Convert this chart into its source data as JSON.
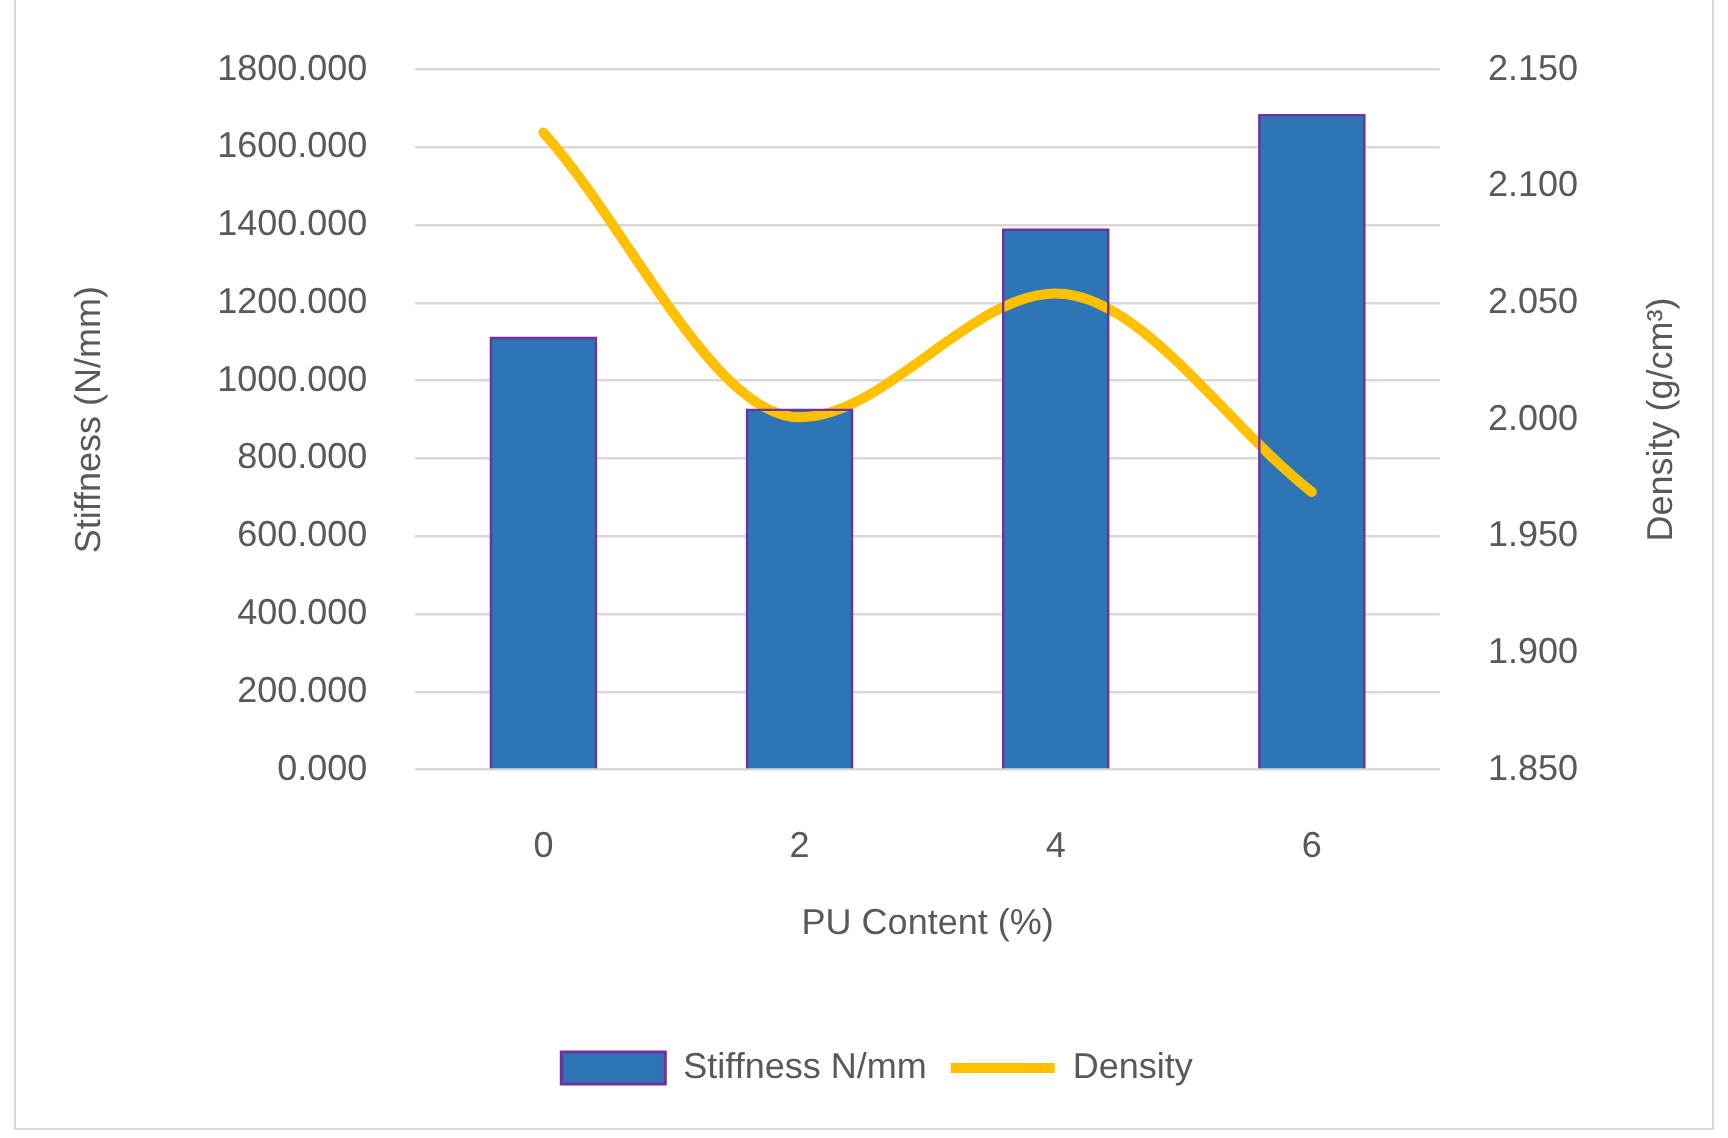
{
  "chart_data": {
    "type": "bar",
    "xlabel": "PU Content (%)",
    "ylabel": "Stiffness (N/mm)",
    "y2label": "Density (g/cm³)",
    "categories": [
      "0",
      "2",
      "4",
      "6"
    ],
    "series": [
      {
        "name": "Stiffness N/mm",
        "color": "#2e75b6",
        "values": [
          1110,
          925,
          1388,
          1683
        ]
      },
      {
        "name": "Density",
        "type": "line",
        "axis": "y2",
        "color": "#ffc000",
        "values": [
          2.123,
          2.001,
          2.054,
          1.969
        ]
      }
    ],
    "ylim": [
      0,
      1800
    ],
    "yticks": [
      {
        "value": 0,
        "label": "0.000"
      },
      {
        "value": 200,
        "label": "200.000"
      },
      {
        "value": 400,
        "label": "400.000"
      },
      {
        "value": 600,
        "label": "600.000"
      },
      {
        "value": 800,
        "label": "800.000"
      },
      {
        "value": 1000,
        "label": "1000.000"
      },
      {
        "value": 1200,
        "label": "1200.000"
      },
      {
        "value": 1400,
        "label": "1400.000"
      },
      {
        "value": 1600,
        "label": "1600.000"
      },
      {
        "value": 1800,
        "label": "1800.000"
      }
    ],
    "y2lim": [
      1.85,
      2.15
    ],
    "y2ticks": [
      {
        "value": 1.85,
        "label": "1.850"
      },
      {
        "value": 1.9,
        "label": "1.900"
      },
      {
        "value": 1.95,
        "label": "1.950"
      },
      {
        "value": 2.0,
        "label": "2.000"
      },
      {
        "value": 2.05,
        "label": "2.050"
      },
      {
        "value": 2.1,
        "label": "2.100"
      },
      {
        "value": 2.15,
        "label": "2.150"
      }
    ],
    "grid": "y",
    "legend": "bottom",
    "marker": "none",
    "line_style": "solid"
  }
}
